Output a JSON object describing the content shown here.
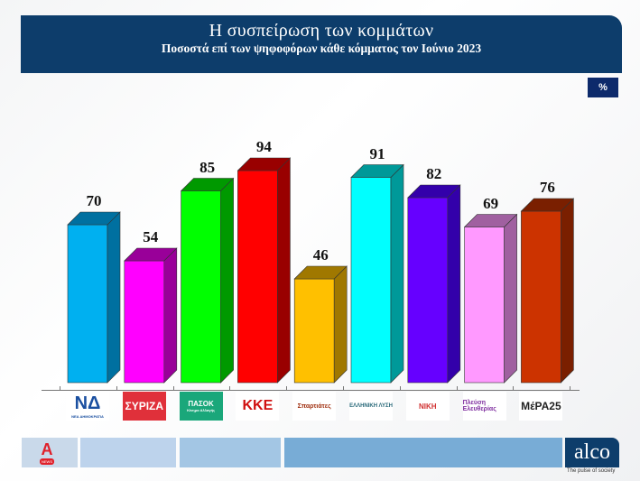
{
  "header": {
    "title": "Η συσπείρωση των κομμάτων",
    "subtitle": "Ποσοστά επί των ψηφοφόρων κάθε κόμματος τον Ιούνιο 2023"
  },
  "unit_badge": "%",
  "chart_data": {
    "type": "bar",
    "title": "Η συσπείρωση των κομμάτων",
    "subtitle": "Ποσοστά επί των ψηφοφόρων κάθε κόμματος τον Ιούνιο 2023",
    "categories": [
      "Νέα Δημοκρατία",
      "ΣΥΡΙΖΑ",
      "ΠΑΣΟΚ",
      "ΚΚΕ",
      "Σπαρτιάτες",
      "Ελληνική Λύση",
      "ΝΙΚΗ",
      "Πλεύση Ελευθερίας",
      "ΜέΡΑ25"
    ],
    "values": [
      70,
      54,
      85,
      94,
      46,
      91,
      82,
      69,
      76
    ],
    "colors": [
      "#00b0f0",
      "#ff00ff",
      "#00ff00",
      "#ff0000",
      "#ffc000",
      "#00ffff",
      "#6600ff",
      "#ff99ff",
      "#cc3300"
    ],
    "side_colors": [
      "#0070a0",
      "#990099",
      "#009900",
      "#990000",
      "#a07800",
      "#009999",
      "#3300aa",
      "#a060a0",
      "#7a1f00"
    ],
    "unit": "%",
    "xlabel": "",
    "ylabel": "",
    "ylim": [
      0,
      100
    ],
    "grid": false,
    "legend": "none",
    "style": "3d-bar"
  },
  "logos": [
    {
      "name": "ΝΔ",
      "sub": "ΝΕΑ ΔΗΜΟΚΡΑΤΙΑ"
    },
    {
      "name": "ΣΥΡΙΖΑ",
      "sub": ""
    },
    {
      "name": "ΠΑΣΟΚ",
      "sub": "Κίνημα Αλλαγής"
    },
    {
      "name": "ΚΚΕ",
      "sub": ""
    },
    {
      "name": "Σπαρτιάτες",
      "sub": ""
    },
    {
      "name": "ΕΛΛΗΝΙΚΗ ΛΥΣΗ",
      "sub": ""
    },
    {
      "name": "ΝΙΚΗ",
      "sub": ""
    },
    {
      "name": "Πλεύση Ελευθερίας",
      "sub": ""
    },
    {
      "name": "ΜέΡΑ25",
      "sub": ""
    }
  ],
  "footer": {
    "channel": "A NEWS",
    "brand": "alco",
    "tagline": "The pulse of society"
  }
}
